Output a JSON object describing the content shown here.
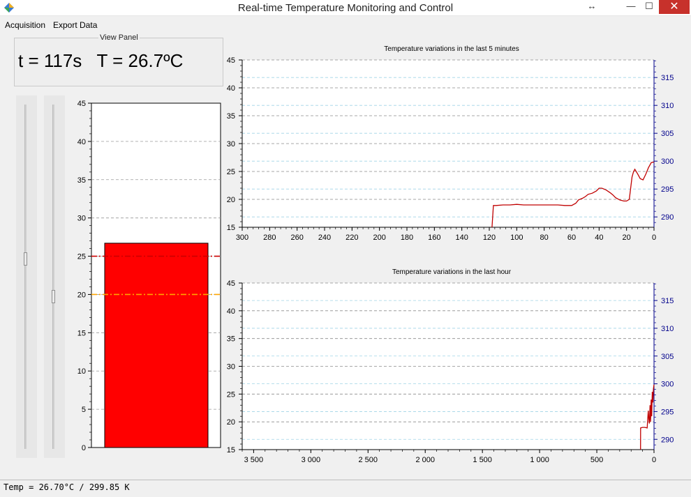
{
  "window": {
    "title": "Real-time Temperature Monitoring and Control",
    "controls": {
      "resize": "↔",
      "minimize": "—",
      "maximize": "☐",
      "close": "✕"
    }
  },
  "menu": {
    "items": [
      "Acquisition",
      "Export Data"
    ]
  },
  "view_panel": {
    "legend": "View Panel",
    "time_label": "t = 117s",
    "temp_label": "T = 26.7ºC"
  },
  "sliders": [
    {
      "name": "setpoint-high-slider",
      "value": 25,
      "range": [
        0,
        45
      ]
    },
    {
      "name": "setpoint-low-slider",
      "value": 20,
      "range": [
        0,
        45
      ]
    }
  ],
  "status": {
    "text": "Temp = 26.70°C / 299.85 K"
  },
  "colors": {
    "bar_fill": "#ff0000",
    "trace": "#c00000",
    "high_line": "#cc0000",
    "low_line": "#ffa500",
    "kelvin_axis": "#00008b"
  },
  "chart_data": [
    {
      "type": "bar",
      "categories": [
        ""
      ],
      "values": [
        26.7
      ],
      "ylim": [
        0,
        45
      ],
      "yticks": [
        0,
        5,
        10,
        15,
        20,
        25,
        30,
        35,
        40,
        45
      ],
      "reference_lines": [
        {
          "value": 25,
          "style": "dash-dot",
          "color": "#cc0000"
        },
        {
          "value": 20,
          "style": "dash-dot",
          "color": "#ffa500"
        }
      ],
      "grid": true
    },
    {
      "type": "line",
      "title": "Temperature variations in the last 5 minutes",
      "xlim": [
        300,
        0
      ],
      "ylim": [
        15,
        45
      ],
      "xticks": [
        300,
        280,
        260,
        240,
        220,
        200,
        180,
        160,
        140,
        120,
        100,
        80,
        60,
        40,
        20,
        0
      ],
      "yticks": [
        15,
        20,
        25,
        30,
        35,
        40,
        45
      ],
      "y2ticks": [
        290,
        295,
        300,
        305,
        310,
        315
      ],
      "y2lim": [
        288.15,
        318.15
      ],
      "grid": true,
      "series": [
        {
          "x": [
            118,
            117,
            115,
            110,
            105,
            100,
            95,
            90,
            85,
            80,
            75,
            70,
            65,
            60,
            57,
            55,
            52,
            50,
            48,
            45,
            42,
            40,
            38,
            35,
            32,
            30,
            28,
            25,
            22,
            20,
            18,
            16,
            15,
            14,
            12,
            10,
            8,
            6,
            4,
            2,
            0
          ],
          "y": [
            15,
            18.9,
            18.9,
            19.0,
            19.0,
            19.1,
            19.0,
            19.0,
            19.0,
            19.0,
            19.0,
            19.0,
            18.9,
            18.9,
            19.3,
            19.9,
            20.2,
            20.5,
            20.9,
            21.1,
            21.5,
            22.0,
            22.0,
            21.7,
            21.2,
            20.8,
            20.3,
            19.9,
            19.7,
            19.7,
            20.0,
            24.0,
            24.9,
            25.4,
            24.6,
            23.7,
            23.5,
            24.5,
            25.7,
            26.6,
            26.7
          ]
        }
      ]
    },
    {
      "type": "line",
      "title": "Temperature variations in the last hour",
      "xlim": [
        3600,
        0
      ],
      "ylim": [
        15,
        45
      ],
      "xticks": [
        3500,
        3000,
        2500,
        2000,
        1500,
        1000,
        500,
        0
      ],
      "xtick_labels": [
        "3 500",
        "3 000",
        "2 500",
        "2 000",
        "1 500",
        "1 000",
        "500",
        "0"
      ],
      "yticks": [
        15,
        20,
        25,
        30,
        35,
        40,
        45
      ],
      "y2ticks": [
        290,
        295,
        300,
        305,
        310,
        315
      ],
      "y2lim": [
        288.15,
        318.15
      ],
      "grid": true,
      "series": [
        {
          "x": [
            118,
            117,
            100,
            80,
            60,
            55,
            50,
            45,
            40,
            35,
            30,
            25,
            20,
            15,
            10,
            5,
            0
          ],
          "y": [
            15,
            18.9,
            19.0,
            19.0,
            18.9,
            20.5,
            22.0,
            20.5,
            19.7,
            23.0,
            20.0,
            24.0,
            21.0,
            25.4,
            23.5,
            26.0,
            26.7
          ]
        }
      ]
    }
  ]
}
